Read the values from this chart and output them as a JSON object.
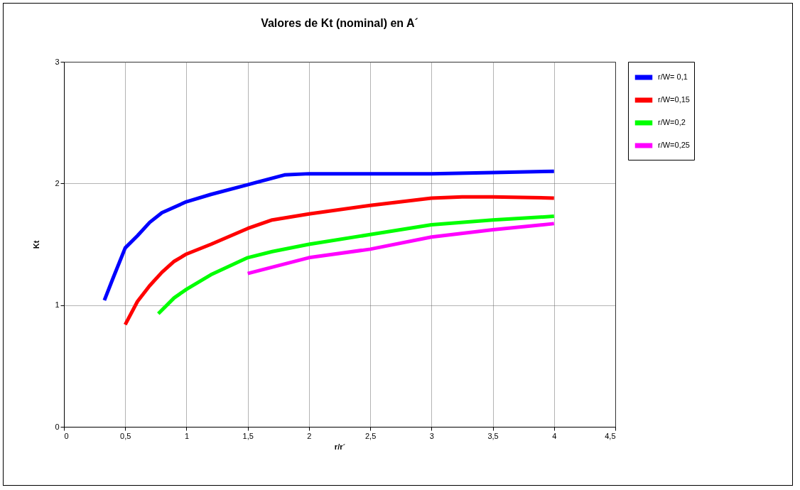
{
  "chart_data": {
    "type": "line",
    "title": "Valores de Kt (nominal) en A´",
    "xlabel": "r/r´",
    "ylabel": "Kt",
    "xlim": [
      0,
      4.5
    ],
    "ylim": [
      0,
      3
    ],
    "xticks": [
      0,
      {
        "value": 0.5,
        "label": "0,5"
      },
      1,
      {
        "value": 1.5,
        "label": "1,5"
      },
      2,
      {
        "value": 2.5,
        "label": "2,5"
      },
      3,
      {
        "value": 3.5,
        "label": "3,5"
      },
      4,
      {
        "value": 4.5,
        "label": "4,5"
      }
    ],
    "yticks": [
      0,
      1,
      2,
      3
    ],
    "grid": true,
    "legend": "right",
    "marker": "none",
    "line_style": "solid",
    "series": [
      {
        "name": "r/W= 0,1",
        "color": "#0000ff",
        "x": [
          0.33,
          0.4,
          0.5,
          0.6,
          0.7,
          0.8,
          1.0,
          1.2,
          1.5,
          1.8,
          2.0,
          2.5,
          3.0,
          3.5,
          4.0
        ],
        "values": [
          1.04,
          1.22,
          1.47,
          1.57,
          1.68,
          1.76,
          1.85,
          1.91,
          1.99,
          2.07,
          2.08,
          2.08,
          2.08,
          2.09,
          2.1
        ]
      },
      {
        "name": "r/W=0,15",
        "color": "#ff0000",
        "x": [
          0.5,
          0.6,
          0.7,
          0.8,
          0.9,
          1.0,
          1.2,
          1.5,
          1.7,
          2.0,
          2.5,
          3.0,
          3.25,
          3.5,
          4.0
        ],
        "values": [
          0.84,
          1.03,
          1.16,
          1.27,
          1.36,
          1.42,
          1.5,
          1.63,
          1.7,
          1.75,
          1.82,
          1.88,
          1.89,
          1.89,
          1.88
        ]
      },
      {
        "name": "r/W=0,2",
        "color": "#00ff00",
        "x": [
          0.77,
          0.9,
          1.0,
          1.2,
          1.5,
          1.7,
          2.0,
          2.5,
          3.0,
          3.5,
          4.0
        ],
        "values": [
          0.93,
          1.06,
          1.13,
          1.25,
          1.39,
          1.44,
          1.5,
          1.58,
          1.66,
          1.7,
          1.73
        ]
      },
      {
        "name": "r/W=0,25",
        "color": "#ff00ff",
        "x": [
          1.5,
          2.0,
          2.5,
          3.0,
          3.5,
          4.0
        ],
        "values": [
          1.26,
          1.39,
          1.46,
          1.56,
          1.62,
          1.67
        ]
      }
    ]
  }
}
